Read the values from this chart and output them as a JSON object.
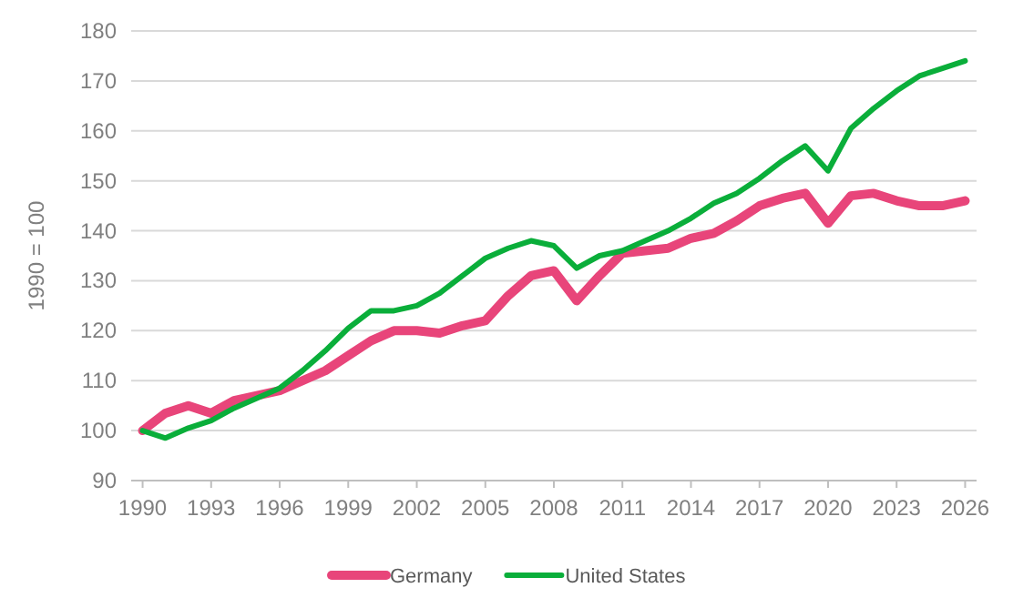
{
  "chart_data": {
    "type": "line",
    "ylabel": "1990 = 100",
    "x": [
      1990,
      1991,
      1992,
      1993,
      1994,
      1995,
      1996,
      1997,
      1998,
      1999,
      2000,
      2001,
      2002,
      2003,
      2004,
      2005,
      2006,
      2007,
      2008,
      2009,
      2010,
      2011,
      2012,
      2013,
      2014,
      2015,
      2016,
      2017,
      2018,
      2019,
      2020,
      2021,
      2022,
      2023,
      2024,
      2025,
      2026
    ],
    "series": [
      {
        "name": "Germany",
        "color": "#e8457a",
        "values": [
          100,
          103.5,
          105,
          103.5,
          106,
          107,
          108,
          110,
          112,
          115,
          118,
          120,
          120,
          119.5,
          121,
          122,
          127,
          131,
          132,
          126,
          131,
          135.5,
          136,
          136.5,
          138.5,
          139.5,
          142,
          145,
          146.5,
          147.5,
          141.5,
          147,
          147.5,
          146,
          145,
          145,
          146
        ]
      },
      {
        "name": "United States",
        "color": "#0aae3a",
        "values": [
          100,
          98.5,
          100.5,
          102,
          104.5,
          106.5,
          108.5,
          112,
          116,
          120.5,
          124,
          124,
          125,
          127.5,
          131,
          134.5,
          136.5,
          138,
          137,
          132.5,
          135,
          136,
          138,
          140,
          142.5,
          145.5,
          147.5,
          150.5,
          154,
          157,
          152,
          160.5,
          164.5,
          168,
          171,
          172.5,
          174
        ]
      }
    ],
    "xlim": [
      1989.5,
      2026.5
    ],
    "xticks": [
      1990,
      1993,
      1996,
      1999,
      2002,
      2005,
      2008,
      2011,
      2014,
      2017,
      2020,
      2023,
      2026
    ],
    "ylim": [
      90,
      180
    ],
    "yticks": [
      90,
      100,
      110,
      120,
      130,
      140,
      150,
      160,
      170,
      180
    ],
    "grid": "y",
    "legend": "bottom"
  }
}
